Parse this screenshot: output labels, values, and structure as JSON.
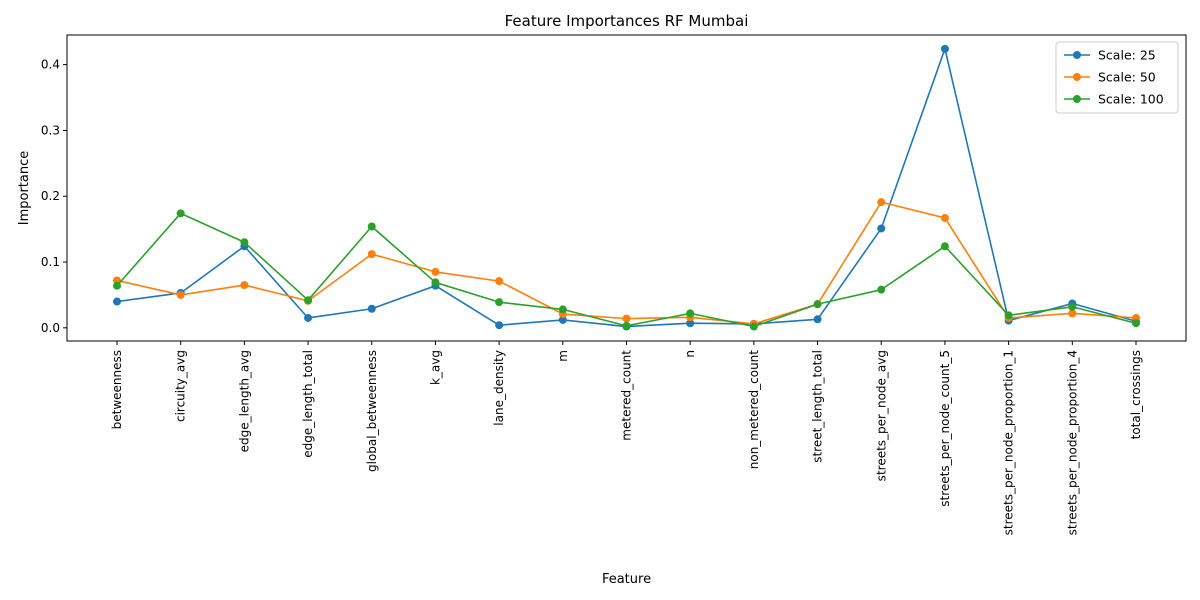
{
  "chart_data": {
    "type": "line",
    "title": "Feature Importances RF Mumbai",
    "xlabel": "Feature",
    "ylabel": "Importance",
    "ylim": [
      -0.02,
      0.445
    ],
    "yticks": [
      "0.0",
      "0.1",
      "0.2",
      "0.3",
      "0.4"
    ],
    "grid": false,
    "legend_position": "top-right",
    "categories": [
      "betweenness",
      "circuity_avg",
      "edge_length_avg",
      "edge_length_total",
      "global_betweenness",
      "k_avg",
      "lane_density",
      "m",
      "metered_count",
      "n",
      "non_metered_count",
      "street_length_total",
      "streets_per_node_avg",
      "streets_per_node_count_5",
      "streets_per_node_proportion_1",
      "streets_per_node_proportion_4",
      "total_crossings"
    ],
    "series": [
      {
        "name": "Scale: 25",
        "color": "#1f77b4",
        "values": [
          0.04,
          0.053,
          0.124,
          0.015,
          0.029,
          0.064,
          0.004,
          0.012,
          0.002,
          0.007,
          0.006,
          0.013,
          0.151,
          0.424,
          0.011,
          0.037,
          0.01
        ]
      },
      {
        "name": "Scale: 50",
        "color": "#ff7f0e",
        "values": [
          0.072,
          0.05,
          0.065,
          0.041,
          0.112,
          0.085,
          0.071,
          0.021,
          0.014,
          0.016,
          0.006,
          0.036,
          0.191,
          0.167,
          0.015,
          0.022,
          0.015
        ]
      },
      {
        "name": "Scale: 100",
        "color": "#2ca02c",
        "values": [
          0.064,
          0.174,
          0.13,
          0.042,
          0.154,
          0.069,
          0.039,
          0.028,
          0.003,
          0.022,
          0.002,
          0.036,
          0.058,
          0.124,
          0.019,
          0.032,
          0.007
        ]
      }
    ]
  }
}
